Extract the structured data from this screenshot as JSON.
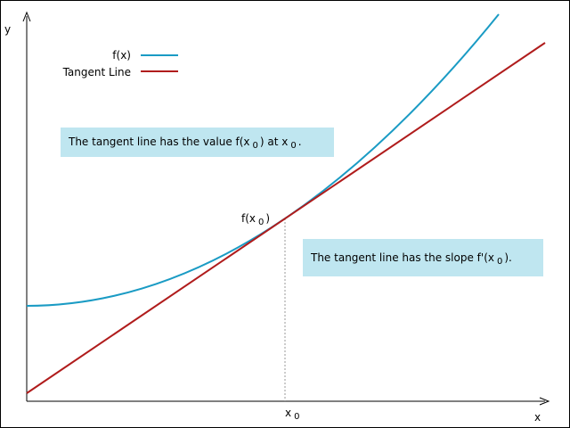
{
  "axes": {
    "y_label": "y",
    "x_label": "x"
  },
  "legend": [
    {
      "label": "f(x)"
    },
    {
      "label": "Tangent Line"
    }
  ],
  "point_label": {
    "text": "f(x",
    "subscript": "0",
    "suffix": ")"
  },
  "x0_label": {
    "text": "x",
    "subscript": "0"
  },
  "annotations": [
    {
      "parts": [
        "The tangent line has the value f(x",
        "0",
        ") at x",
        "0",
        "."
      ]
    },
    {
      "parts": [
        "The tangent line has the slope f'(x",
        "0",
        ")."
      ]
    }
  ]
}
